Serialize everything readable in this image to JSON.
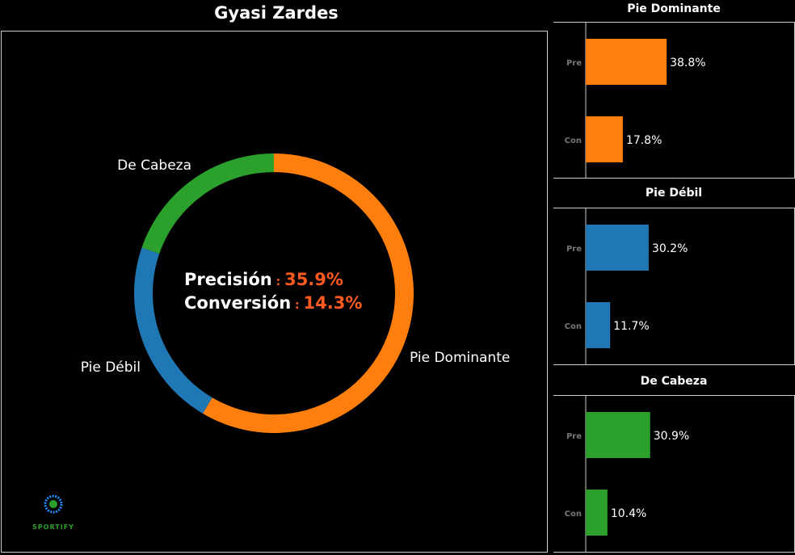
{
  "title": "Gyasi Zardes",
  "logo_text": "SPORTIFY",
  "chart_data": [
    {
      "type": "pie",
      "donut": true,
      "title": "Gyasi Zardes",
      "categories": [
        "Pie Dominante",
        "Pie Débil",
        "De Cabeza"
      ],
      "values": [
        58.5,
        21.8,
        19.7
      ],
      "colors": [
        "#ff7f0e",
        "#1f77b4",
        "#2ca02c"
      ],
      "center_labels": [
        {
          "label": "Precisión",
          "value": "35.9%"
        },
        {
          "label": "Conversión",
          "value": "14.3%"
        }
      ],
      "highlight_color": "#ff5a1f"
    },
    {
      "type": "bar",
      "orientation": "horizontal",
      "title": "Pie Dominante",
      "categories": [
        "Pre",
        "Con"
      ],
      "values": [
        38.8,
        17.8
      ],
      "labels": [
        "38.8%",
        "17.8%"
      ],
      "color": "#ff7f0e",
      "xlim": [
        0,
        100
      ]
    },
    {
      "type": "bar",
      "orientation": "horizontal",
      "title": "Pie Débil",
      "categories": [
        "Pre",
        "Con"
      ],
      "values": [
        30.2,
        11.7
      ],
      "labels": [
        "30.2%",
        "11.7%"
      ],
      "color": "#1f77b4",
      "xlim": [
        0,
        100
      ]
    },
    {
      "type": "bar",
      "orientation": "horizontal",
      "title": "De Cabeza",
      "categories": [
        "Pre",
        "Con"
      ],
      "values": [
        30.9,
        10.4
      ],
      "labels": [
        "30.9%",
        "10.4%"
      ],
      "color": "#2ca02c",
      "xlim": [
        0,
        100
      ]
    }
  ]
}
